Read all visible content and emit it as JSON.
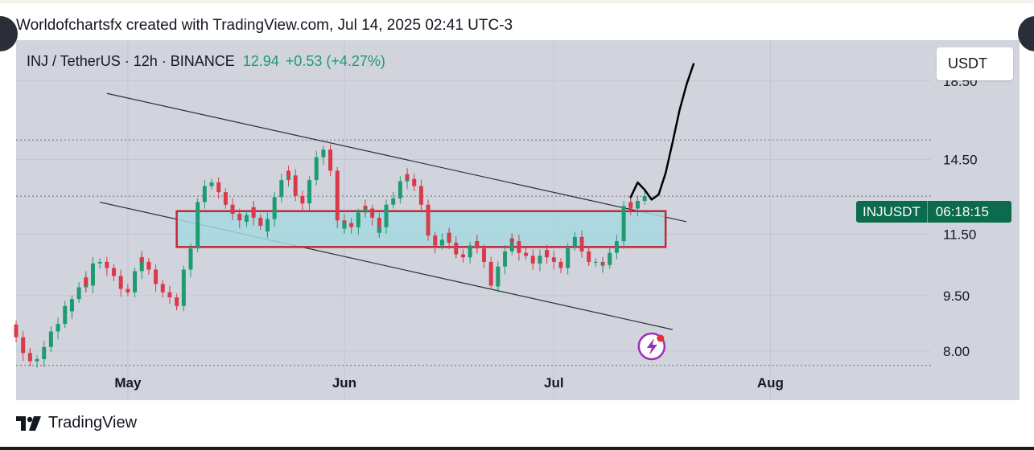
{
  "caption": "Worldofchartsfx created with TradingView.com, Jul 14, 2025 02:41 UTC-3",
  "symbol": {
    "name": "INJ / TetherUS · 12h · BINANCE",
    "price": "12.94",
    "change": "+0.53 (+4.27%)"
  },
  "currency_button": "USDT",
  "ticker_tag": {
    "symbol": "INJUSDT",
    "countdown": "06:18:15"
  },
  "footer": {
    "brand": "TradingView",
    "logo_icon": "tradingview-logo-icon"
  },
  "colors": {
    "up": "#1e9b70",
    "down": "#d93a4a",
    "zone_fill": "#a8d8e0",
    "zone_border": "#c2283a",
    "background": "#d1d4dc",
    "tag": "#0b6b4c"
  },
  "chart_data": {
    "type": "candlestick",
    "title": "INJ / TetherUS · 12h · BINANCE",
    "x_ticks": [
      "May",
      "Jun",
      "Jul",
      "Aug"
    ],
    "y_ticks": [
      18.5,
      14.5,
      11.5,
      9.5,
      8.0
    ],
    "y_scale": "log",
    "ylim": [
      7.55,
      21.0
    ],
    "x_range": [
      "2025-04-15",
      "2025-08-24"
    ],
    "last_price": 12.94,
    "closes": [
      8.6,
      8.35,
      8.15,
      7.95,
      7.85,
      7.75,
      7.8,
      7.9,
      8.1,
      8.35,
      8.5,
      8.7,
      8.95,
      9.2,
      9.05,
      9.4,
      9.75,
      10.05,
      9.8,
      10.2,
      10.5,
      10.55,
      10.4,
      10.35,
      10.2,
      10.1,
      9.9,
      9.7,
      9.6,
      9.8,
      10.25,
      10.7,
      10.55,
      10.3,
      10.1,
      9.85,
      9.7,
      9.6,
      9.45,
      9.3,
      9.2,
      9.5,
      10.3,
      11.0,
      12.0,
      12.7,
      13.1,
      13.35,
      13.5,
      13.3,
      13.1,
      12.85,
      12.6,
      12.45,
      12.25,
      12.0,
      11.95,
      12.2,
      12.5,
      12.1,
      11.8,
      11.6,
      12.05,
      12.5,
      12.9,
      13.6,
      14.0,
      13.8,
      13.3,
      12.95,
      12.65,
      13.1,
      13.6,
      14.1,
      14.6,
      14.95,
      14.65,
      14.0,
      13.2,
      12.0,
      11.7,
      11.9,
      11.75,
      11.85,
      12.3,
      12.55,
      12.45,
      12.1,
      11.55,
      11.75,
      12.15,
      12.6,
      12.85,
      13.15,
      13.55,
      13.85,
      13.65,
      13.35,
      13.0,
      12.6,
      11.75,
      11.45,
      11.25,
      11.1,
      11.3,
      11.55,
      11.2,
      10.95,
      10.8,
      10.7,
      10.9,
      11.1,
      11.25,
      11.0,
      10.55,
      10.15,
      9.8,
      9.8,
      10.4,
      10.9,
      11.35,
      11.25,
      11.05,
      10.85,
      10.75,
      10.6,
      10.5,
      10.6,
      10.75,
      10.95,
      10.7,
      10.55,
      10.4,
      10.35,
      10.6,
      11.05,
      11.4,
      11.15,
      10.9,
      10.7,
      10.55,
      10.55,
      10.45,
      10.45,
      10.6,
      10.85,
      11.25,
      11.9,
      12.55,
      12.7,
      12.45,
      12.75,
      12.94
    ]
  }
}
